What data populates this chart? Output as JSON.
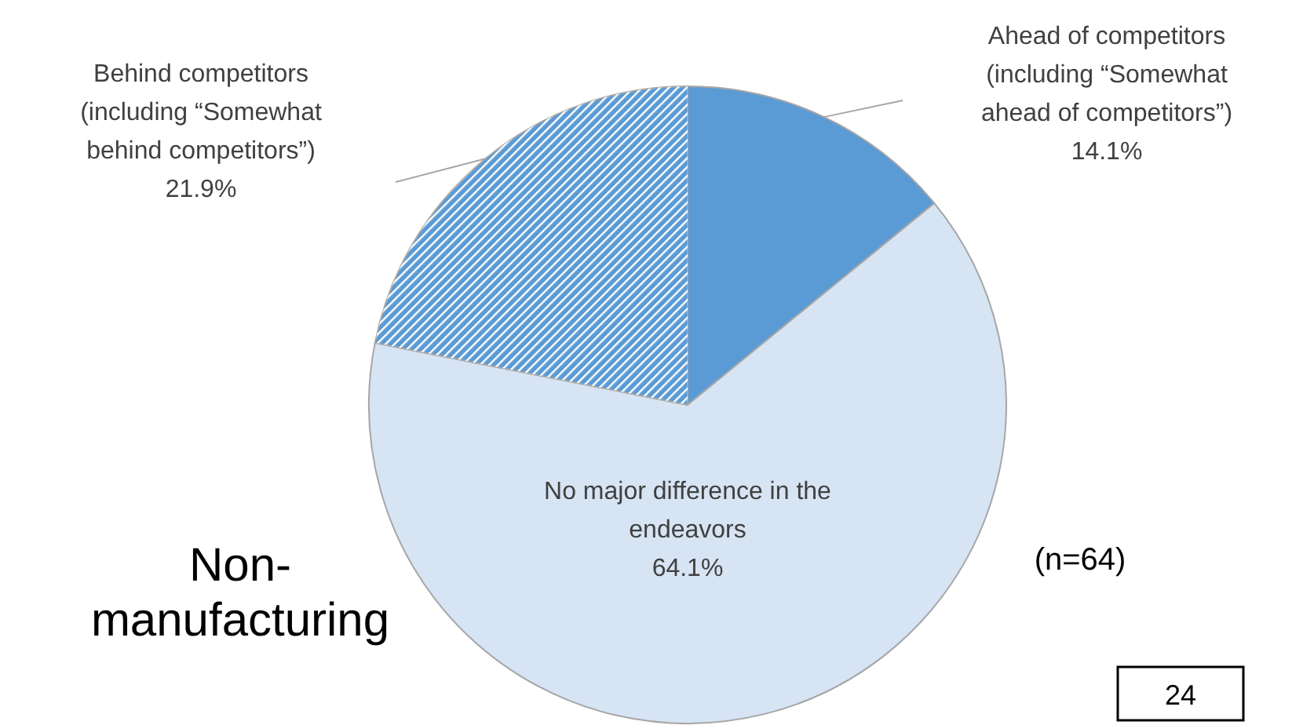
{
  "chart_data": {
    "type": "pie",
    "title": "Non-manufacturing",
    "categories": [
      "Ahead of competitors (including “Somewhat ahead of competitors”)",
      "No major difference in the endeavors",
      "Behind competitors (including “Somewhat behind competitors”)"
    ],
    "values": [
      14.1,
      64.1,
      21.9
    ],
    "value_labels": [
      "14.1%",
      "64.1%",
      "21.9%"
    ],
    "colors": [
      "#5b9bd5",
      "#d6e4f4",
      "#5b9bd5"
    ],
    "annotations": [
      "(n=64)",
      "24"
    ]
  }
}
